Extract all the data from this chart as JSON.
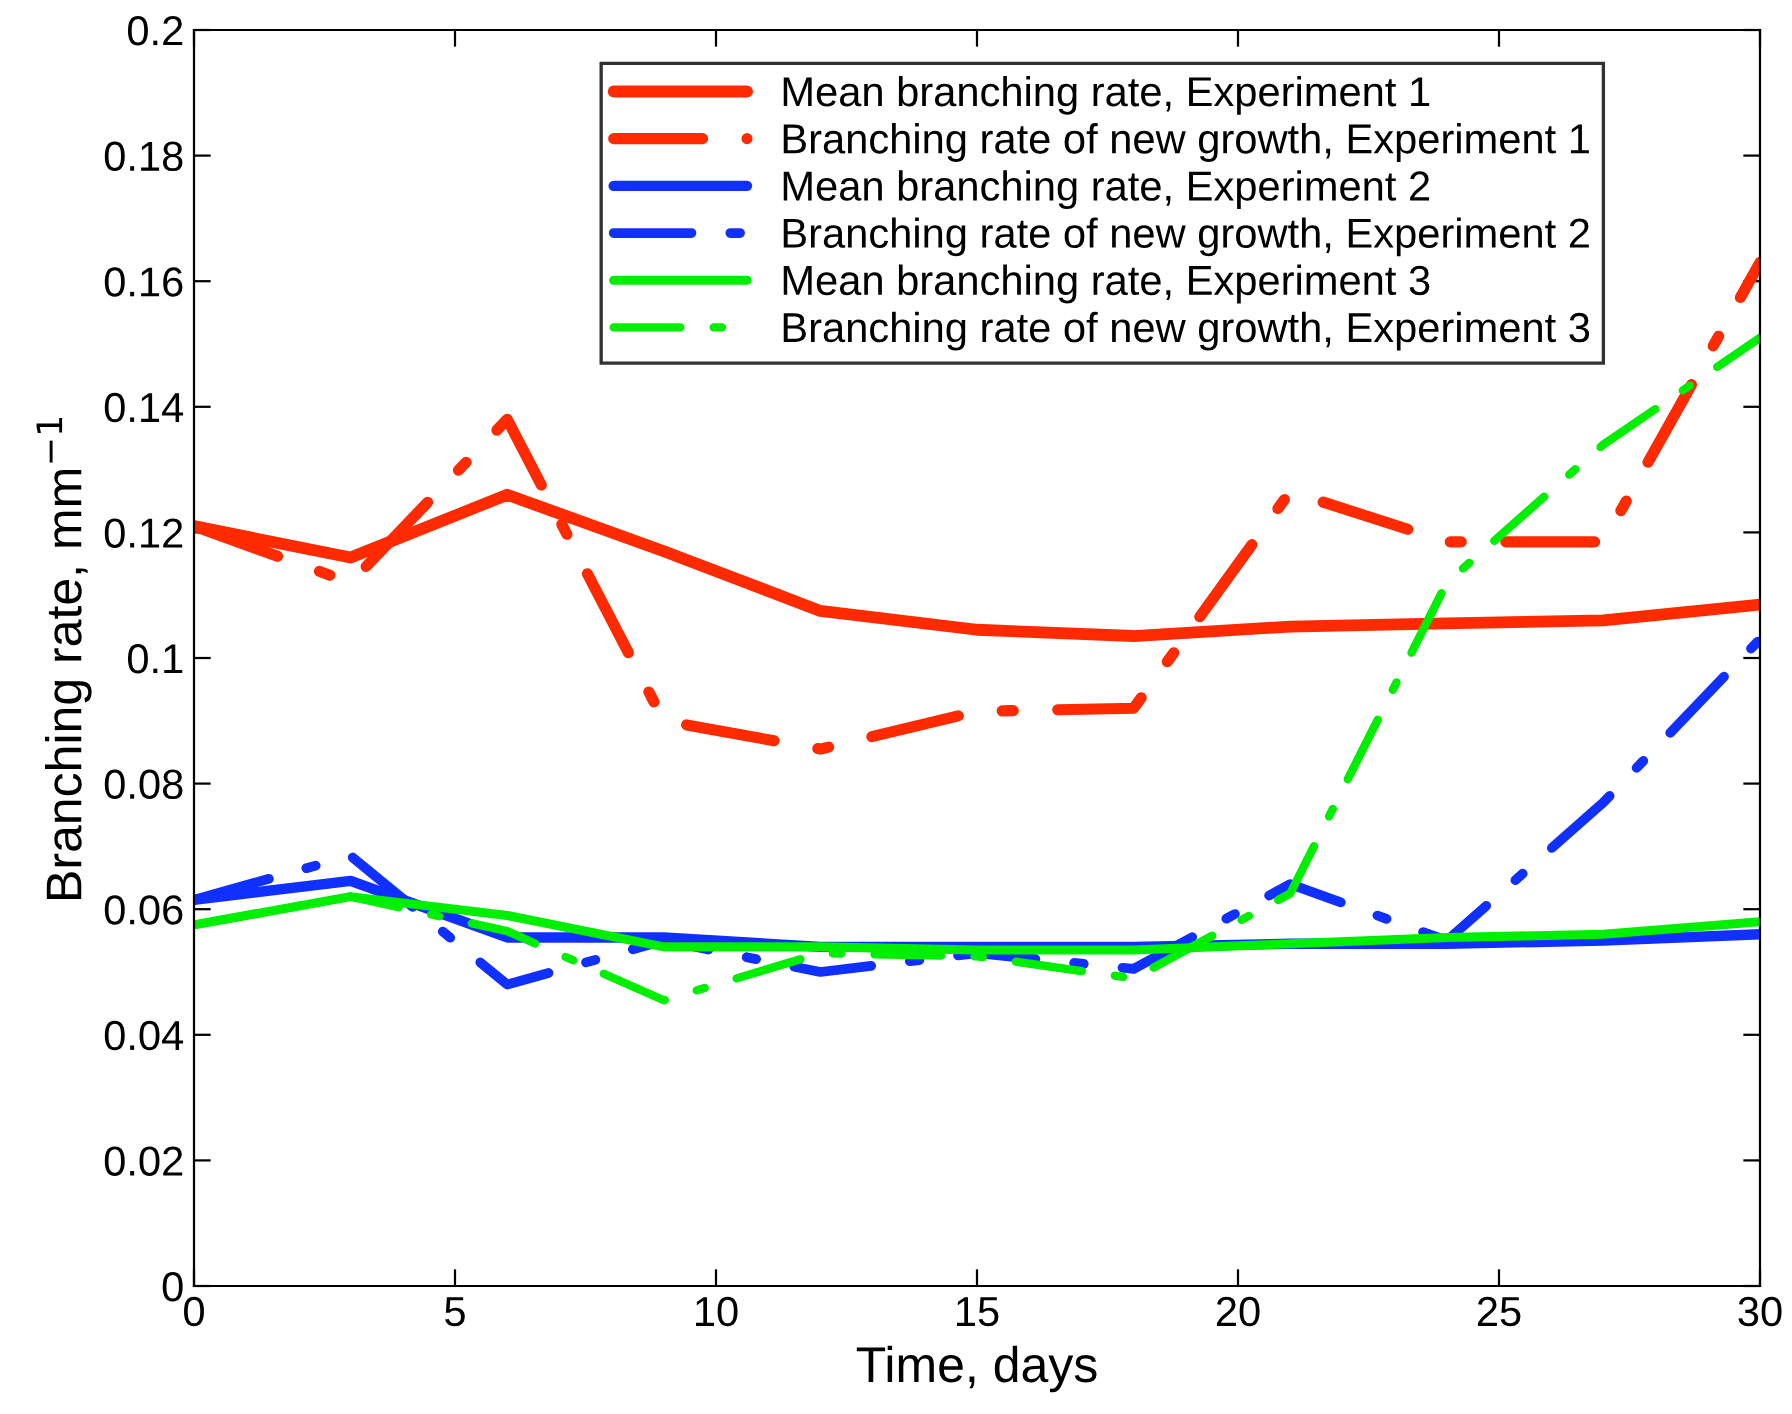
{
  "chart_data": {
    "type": "line",
    "xlabel": "Time, days",
    "ylabel": "Branching rate, mm$^{−1}$",
    "x": [
      0,
      3,
      6,
      9,
      12,
      15,
      18,
      21,
      24,
      27,
      30
    ],
    "xlim": [
      0,
      30
    ],
    "xticks": [
      0,
      5,
      10,
      15,
      20,
      25,
      30
    ],
    "ylim": [
      0,
      0.2
    ],
    "yticks": [
      0,
      0.02,
      0.04,
      0.06,
      0.08,
      0.1,
      0.12,
      0.14,
      0.16,
      0.18,
      0.2
    ],
    "grid": false,
    "legend": "top",
    "marker": "none",
    "series": [
      {
        "name": "Mean branching rate, Experiment 1",
        "color": "#ff2a00",
        "line_style": "solid",
        "values": [
          0.121,
          0.116,
          0.126,
          0.117,
          0.1075,
          0.1045,
          0.1035,
          0.105,
          0.1055,
          0.106,
          0.1085
        ]
      },
      {
        "name": "Branching rate of new growth, Experiment 1",
        "color": "#ff2a00",
        "line_style": "dashdot",
        "values": [
          0.121,
          0.112,
          0.138,
          0.09,
          0.0855,
          0.0915,
          0.092,
          0.1265,
          0.1185,
          0.1185,
          0.163
        ]
      },
      {
        "name": "Mean branching rate, Experiment 2",
        "color": "#1030ff",
        "line_style": "solid",
        "values": [
          0.0615,
          0.0645,
          0.0555,
          0.0555,
          0.054,
          0.054,
          0.054,
          0.0545,
          0.0545,
          0.055,
          0.056
        ]
      },
      {
        "name": "Branching rate of new growth, Experiment 2",
        "color": "#1030ff",
        "line_style": "dashdot",
        "values": [
          0.0615,
          0.0685,
          0.048,
          0.055,
          0.05,
          0.053,
          0.0505,
          0.064,
          0.055,
          0.077,
          0.103
        ]
      },
      {
        "name": "Mean branching rate, Experiment 3",
        "color": "#00ee00",
        "line_style": "solid",
        "values": [
          0.0575,
          0.062,
          0.059,
          0.054,
          0.054,
          0.0535,
          0.0535,
          0.0545,
          0.0555,
          0.056,
          0.058
        ]
      },
      {
        "name": "Branching rate of new growth, Experiment 3",
        "color": "#00ee00",
        "line_style": "dashdot",
        "values": [
          0.0575,
          0.062,
          0.0565,
          0.0455,
          0.053,
          0.0525,
          0.049,
          0.0625,
          0.112,
          0.134,
          0.151
        ]
      }
    ]
  }
}
